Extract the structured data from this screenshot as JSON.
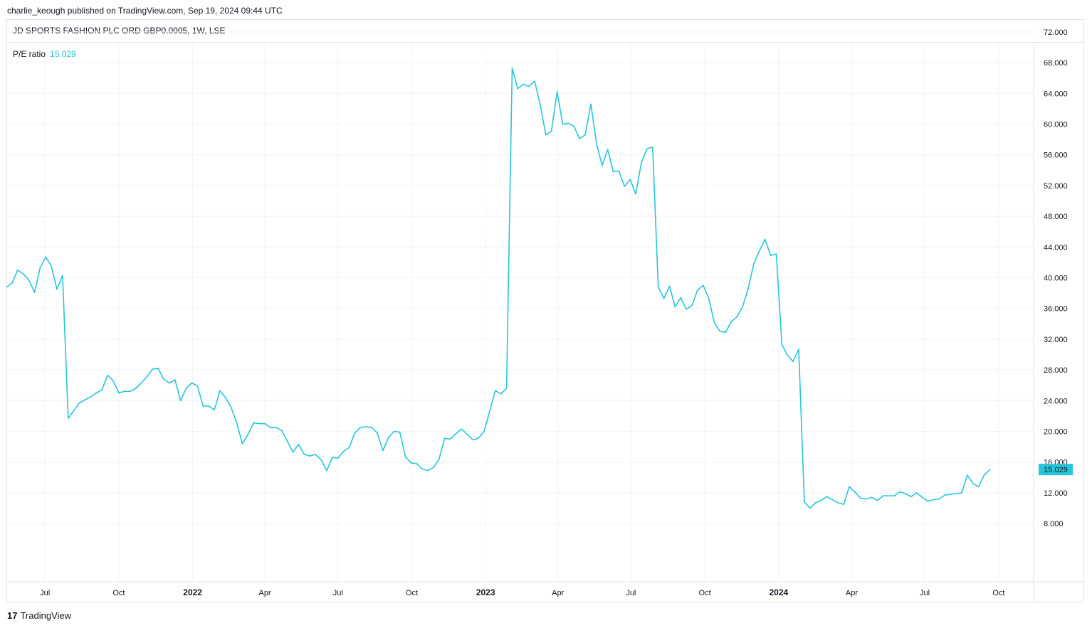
{
  "publish_info": "charlie_keough published on TradingView.com, Sep 19, 2024 09:44 UTC",
  "symbol_title": "JD SPORTS FASHION PLC ORD GBP0.0005, 1W, LSE",
  "legend": {
    "label": "P/E ratio",
    "value": "15.029"
  },
  "branding": {
    "logo": "17",
    "name": "TradingView"
  },
  "colors": {
    "line": "#26c6da",
    "grid": "#f0f3fa",
    "price_badge": "#26c6da"
  },
  "chart_data": {
    "type": "line",
    "title": "P/E ratio",
    "series": [
      {
        "name": "P/E ratio",
        "values": [
          38.8,
          39.3,
          41.0,
          40.5,
          39.7,
          38.1,
          41.3,
          42.7,
          41.5,
          38.5,
          40.3,
          21.7,
          22.7,
          23.7,
          24.1,
          24.5,
          25.0,
          25.4,
          27.3,
          26.6,
          25.0,
          25.2,
          25.2,
          25.6,
          26.3,
          27.1,
          28.1,
          28.2,
          26.8,
          26.3,
          26.7,
          24.0,
          25.6,
          26.3,
          25.9,
          23.3,
          23.3,
          22.8,
          25.3,
          24.4,
          23.1,
          21.1,
          18.4,
          19.6,
          21.1,
          21.0,
          21.0,
          20.5,
          20.5,
          20.1,
          18.7,
          17.3,
          18.3,
          17.0,
          16.8,
          17.0,
          16.3,
          14.9,
          16.6,
          16.5,
          17.4,
          17.9,
          19.8,
          20.5,
          20.6,
          20.5,
          19.8,
          17.5,
          19.2,
          20.0,
          19.9,
          16.7,
          15.9,
          15.8,
          15.1,
          14.9,
          15.3,
          16.4,
          19.1,
          19.0,
          19.7,
          20.3,
          19.6,
          18.9,
          19.1,
          20.0,
          22.6,
          25.3,
          24.9,
          25.6,
          67.3,
          64.6,
          65.2,
          64.9,
          65.6,
          62.5,
          58.6,
          59.1,
          64.2,
          60.0,
          60.1,
          59.7,
          58.1,
          58.6,
          62.6,
          57.5,
          54.6,
          56.7,
          53.8,
          53.9,
          51.9,
          52.8,
          50.9,
          55.0,
          56.8,
          57.0,
          38.8,
          37.3,
          38.9,
          36.2,
          37.4,
          35.9,
          36.4,
          38.4,
          39.0,
          37.3,
          34.1,
          33.0,
          32.9,
          34.3,
          34.9,
          36.2,
          38.6,
          41.8,
          43.5,
          45.0,
          42.9,
          43.1,
          31.3,
          29.9,
          29.1,
          30.7,
          10.8,
          10.0,
          10.7,
          11.0,
          11.5,
          11.1,
          10.7,
          10.5,
          12.8,
          12.1,
          11.3,
          11.2,
          11.4,
          11.0,
          11.6,
          11.6,
          11.6,
          12.1,
          11.9,
          11.5,
          12.0,
          11.4,
          10.9,
          11.1,
          11.2,
          11.7,
          11.8,
          11.9,
          12.0,
          14.3,
          13.2,
          12.8,
          14.3,
          15.029
        ]
      }
    ],
    "x_start": "2021-05-14",
    "x_step": "1W",
    "x_ticks": [
      "Jul",
      "Oct",
      "2022",
      "Apr",
      "Jul",
      "Oct",
      "2023",
      "Apr",
      "Jul",
      "Oct",
      "2024",
      "Apr",
      "Jul",
      "Oct"
    ],
    "y_ticks": [
      "8.000",
      "12.000",
      "16.000",
      "20.000",
      "24.000",
      "28.000",
      "32.000",
      "36.000",
      "40.000",
      "44.000",
      "48.000",
      "52.000",
      "56.000",
      "60.000",
      "64.000",
      "68.000",
      "72.000"
    ],
    "ylim": [
      8,
      72
    ],
    "last_value_label": "15.029",
    "grid": true,
    "legend_position": "top-left"
  }
}
